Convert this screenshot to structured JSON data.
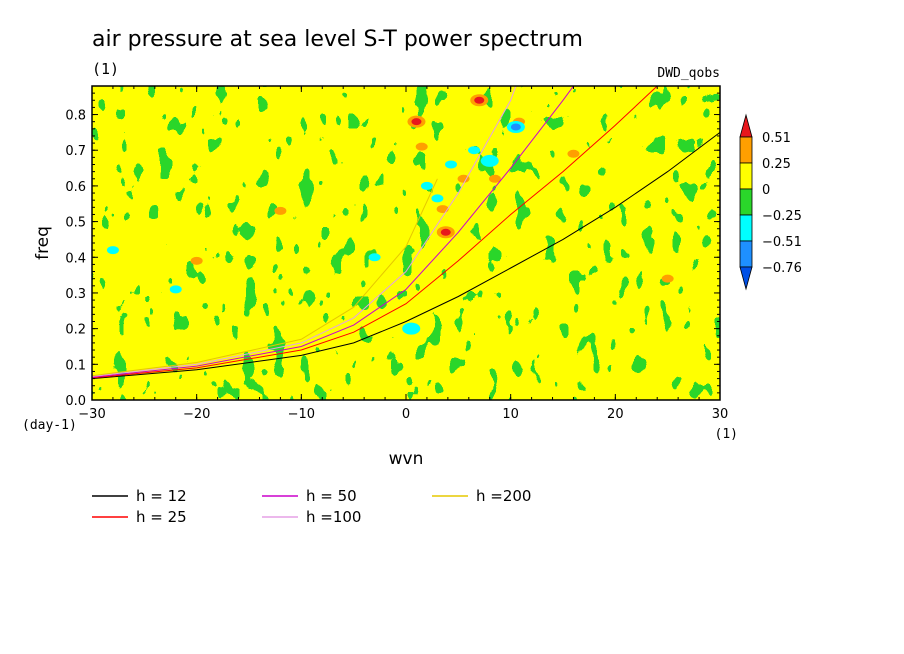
{
  "chart_data": {
    "type": "heatmap",
    "title": "air pressure at sea level S-T power spectrum",
    "subtitle": "(1)",
    "source_label": "DWD_qobs",
    "xlabel": "wvn",
    "ylabel": "freq",
    "x_unit": "(1)",
    "y_unit": "(day-1)",
    "xlim": [
      -30,
      30
    ],
    "ylim": [
      0,
      0.88
    ],
    "x_ticks": [
      -30,
      -20,
      -10,
      0,
      10,
      20,
      30
    ],
    "x_tick_labels": [
      "−30",
      "−20",
      "−10",
      "0",
      "10",
      "20",
      "30"
    ],
    "y_ticks": [
      0,
      0.1,
      0.2,
      0.3,
      0.4,
      0.5,
      0.6,
      0.7,
      0.8
    ],
    "y_tick_labels": [
      "0.0",
      "0.1",
      "0.2",
      "0.3",
      "0.4",
      "0.5",
      "0.6",
      "0.7",
      "0.8"
    ],
    "grid": false,
    "colorbar": {
      "levels": [
        "0.51",
        "0.25",
        "0",
        "−0.25",
        "−0.51",
        "−0.76"
      ],
      "colors": [
        "#e8171c",
        "#ff9f00",
        "#ffff00",
        "#2ad62a",
        "#00ffff",
        "#1e90ff",
        "#0050e6"
      ]
    },
    "dispersion_curves": [
      {
        "name": "h = 12",
        "color": "#000000",
        "x": [
          -30,
          -20,
          -10,
          -5,
          0,
          5,
          10,
          15,
          20,
          25,
          30
        ],
        "y": [
          0.06,
          0.085,
          0.125,
          0.16,
          0.22,
          0.29,
          0.37,
          0.45,
          0.54,
          0.64,
          0.75
        ]
      },
      {
        "name": "h = 25",
        "color": "#ff0000",
        "x": [
          -30,
          -20,
          -10,
          -5,
          0,
          5,
          10,
          15,
          20,
          24
        ],
        "y": [
          0.062,
          0.09,
          0.14,
          0.19,
          0.27,
          0.39,
          0.52,
          0.64,
          0.77,
          0.88
        ]
      },
      {
        "name": "h = 50",
        "color": "#cc00cc",
        "x": [
          -30,
          -20,
          -10,
          -5,
          0,
          5,
          10,
          15,
          16
        ],
        "y": [
          0.064,
          0.095,
          0.15,
          0.21,
          0.31,
          0.47,
          0.65,
          0.84,
          0.88
        ]
      },
      {
        "name": "h =100",
        "color": "#e6a0e6",
        "x": [
          -30,
          -20,
          -10,
          -5,
          0,
          5,
          10,
          10.5
        ],
        "y": [
          0.066,
          0.1,
          0.16,
          0.23,
          0.36,
          0.58,
          0.84,
          0.88
        ]
      },
      {
        "name": "h =200",
        "color": "#e6c800",
        "x": [
          -30,
          -20,
          -10,
          -5,
          0,
          3
        ],
        "y": [
          0.068,
          0.105,
          0.17,
          0.26,
          0.43,
          0.62
        ]
      }
    ],
    "hotspots": [
      {
        "x": 3.8,
        "y": 0.47,
        "value": 0.6
      },
      {
        "x": 7.0,
        "y": 0.84,
        "value": 0.55
      },
      {
        "x": 1.0,
        "y": 0.78,
        "value": 0.55
      },
      {
        "x": 3.5,
        "y": 0.535,
        "value": 0.4
      },
      {
        "x": 5.5,
        "y": 0.62,
        "value": 0.35
      },
      {
        "x": 1.5,
        "y": 0.71,
        "value": 0.3
      },
      {
        "x": 8.5,
        "y": 0.62,
        "value": 0.35
      },
      {
        "x": 10.8,
        "y": 0.78,
        "value": 0.35
      },
      {
        "x": 3.0,
        "y": 0.565,
        "value": -0.45
      },
      {
        "x": 2.0,
        "y": 0.6,
        "value": -0.4
      },
      {
        "x": 4.3,
        "y": 0.66,
        "value": -0.4
      },
      {
        "x": 6.5,
        "y": 0.7,
        "value": -0.45
      },
      {
        "x": 8.0,
        "y": 0.67,
        "value": -0.5
      },
      {
        "x": 10.5,
        "y": 0.765,
        "value": -0.8
      },
      {
        "x": 0.5,
        "y": 0.2,
        "value": -0.5
      },
      {
        "x": -20,
        "y": 0.39,
        "value": 0.3
      },
      {
        "x": -22,
        "y": 0.31,
        "value": -0.3
      },
      {
        "x": -28,
        "y": 0.42,
        "value": -0.3
      },
      {
        "x": -12,
        "y": 0.53,
        "value": 0.3
      },
      {
        "x": 16,
        "y": 0.69,
        "value": 0.3
      },
      {
        "x": 25,
        "y": 0.34,
        "value": 0.3
      },
      {
        "x": -3,
        "y": 0.4,
        "value": -0.3
      }
    ]
  }
}
